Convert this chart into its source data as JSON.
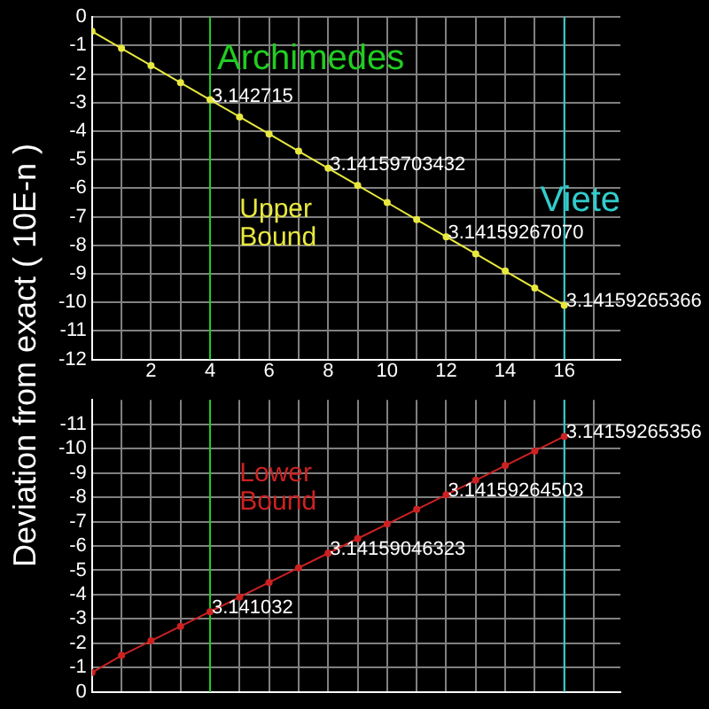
{
  "chart_data": [
    {
      "type": "line",
      "ylabel": "Deviation from exact ( 10E-n )",
      "x": [
        0,
        1,
        2,
        3,
        4,
        5,
        6,
        7,
        8,
        9,
        10,
        11,
        12,
        13,
        14,
        15,
        16
      ],
      "series": [
        {
          "name": "Upper Bound",
          "color": "#e8e840",
          "values": [
            -0.5,
            -1.1,
            -1.7,
            -2.3,
            -2.9,
            -3.5,
            -4.1,
            -4.7,
            -5.3,
            -5.9,
            -6.5,
            -7.1,
            -7.7,
            -8.3,
            -8.9,
            -9.5,
            -10.1
          ]
        }
      ],
      "xlim": [
        0,
        17.9
      ],
      "xticks": [
        {
          "value": 0,
          "label": null
        },
        {
          "value": 1,
          "label": null
        },
        2,
        {
          "value": 3,
          "label": null
        },
        4,
        {
          "value": 5,
          "label": null
        },
        6,
        {
          "value": 7,
          "label": null
        },
        8,
        {
          "value": 9,
          "label": null
        },
        10,
        {
          "value": 11,
          "label": null
        },
        12,
        {
          "value": 13,
          "label": null
        },
        14,
        {
          "value": 15,
          "label": null
        },
        16,
        {
          "value": 17,
          "label": null
        }
      ],
      "ylim": [
        -12,
        0
      ],
      "yticks": [
        0,
        -1,
        -2,
        -3,
        -4,
        -5,
        -6,
        -7,
        -8,
        -9,
        -10,
        -11,
        -12
      ],
      "grid": true,
      "legend": false,
      "marker": "circle",
      "line_style": "solid",
      "ref_lines": [
        {
          "axis": "x",
          "value": 4,
          "label": "Archimedes",
          "color": "#22cc22"
        },
        {
          "axis": "x",
          "value": 16,
          "label": "Viete",
          "color": "#33cccc"
        }
      ],
      "annotations": [
        {
          "text": "3.142715",
          "x": 4,
          "y": -2.9
        },
        {
          "text": "3.14159703432",
          "x": 8,
          "y": -5.3
        },
        {
          "text": "3.14159267070",
          "x": 12,
          "y": -7.7
        },
        {
          "text": "3.14159265366",
          "x": 16,
          "y": -10.1
        }
      ]
    },
    {
      "type": "line",
      "x": [
        0,
        1,
        2,
        3,
        4,
        5,
        6,
        7,
        8,
        9,
        10,
        11,
        12,
        13,
        14,
        15,
        16
      ],
      "series": [
        {
          "name": "Lower Bound",
          "color": "#cc2222",
          "values": [
            -0.8,
            -1.5,
            -2.1,
            -2.7,
            -3.3,
            -3.9,
            -4.5,
            -5.1,
            -5.7,
            -6.3,
            -6.9,
            -7.5,
            -8.1,
            -8.7,
            -9.3,
            -9.9,
            -10.5
          ]
        }
      ],
      "xlim": [
        0,
        17.9
      ],
      "xticks": [
        {
          "value": 0,
          "label": null
        },
        {
          "value": 1,
          "label": null
        },
        {
          "value": 2,
          "label": null
        },
        {
          "value": 3,
          "label": null
        },
        {
          "value": 4,
          "label": null
        },
        {
          "value": 5,
          "label": null
        },
        {
          "value": 6,
          "label": null
        },
        {
          "value": 7,
          "label": null
        },
        {
          "value": 8,
          "label": null
        },
        {
          "value": 9,
          "label": null
        },
        {
          "value": 10,
          "label": null
        },
        {
          "value": 11,
          "label": null
        },
        {
          "value": 12,
          "label": null
        },
        {
          "value": 13,
          "label": null
        },
        {
          "value": 14,
          "label": null
        },
        {
          "value": 15,
          "label": null
        },
        {
          "value": 16,
          "label": null
        },
        {
          "value": 17,
          "label": null
        }
      ],
      "ylim": [
        0,
        -12
      ],
      "yticks": [
        -11,
        -10,
        -9,
        -8,
        -7,
        -6,
        -5,
        -4,
        -3,
        -2,
        -1,
        0
      ],
      "tick_labels": "y",
      "grid": true,
      "legend": false,
      "marker": "circle",
      "line_style": "solid",
      "ref_lines": [
        {
          "axis": "x",
          "value": 4,
          "color": "#22cc22"
        },
        {
          "axis": "x",
          "value": 16,
          "color": "#33cccc"
        }
      ],
      "annotations": [
        {
          "text": "3.141032",
          "x": 4,
          "y": -3.3
        },
        {
          "text": "3.14159046323",
          "x": 8,
          "y": -5.7
        },
        {
          "text": "3.14159264503",
          "x": 12,
          "y": -8.1
        },
        {
          "text": "3.14159265356",
          "x": 16,
          "y": -10.5
        }
      ]
    }
  ]
}
